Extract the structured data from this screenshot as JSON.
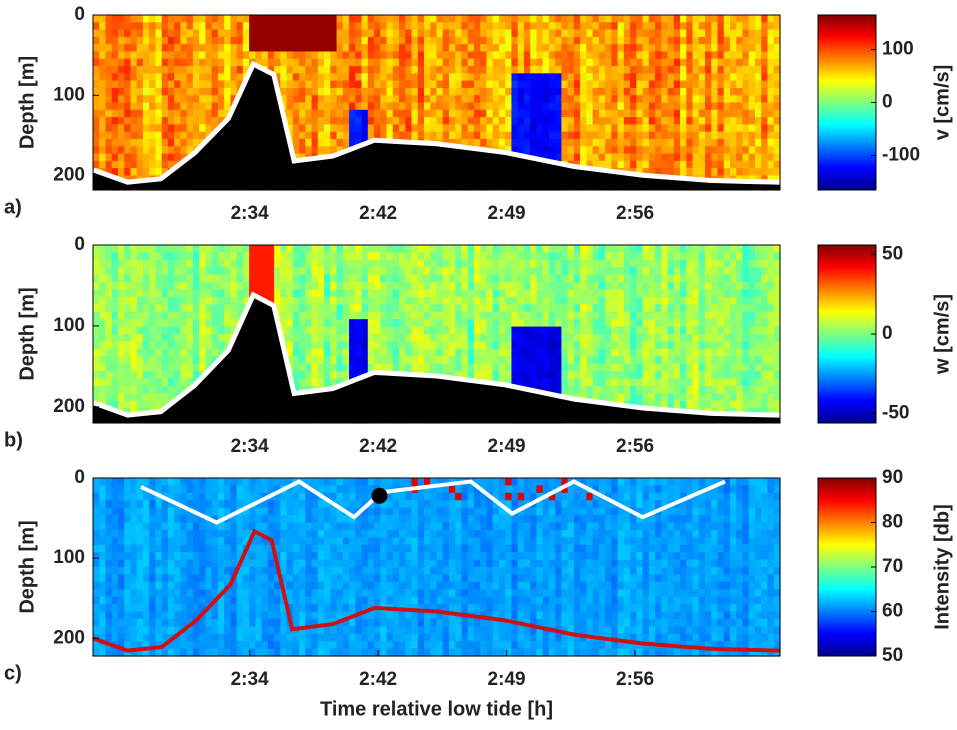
{
  "chart_data": [
    {
      "type": "heatmap",
      "panel_label": "a)",
      "ylabel": "Depth [m]",
      "ylim": [
        0,
        218
      ],
      "yticks": [
        0,
        100,
        200
      ],
      "xticks": [
        "2:34",
        "2:42",
        "2:49",
        "2:56"
      ],
      "colorbar": {
        "label": "v [cm/s]",
        "lim": [
          -165,
          165
        ],
        "ticks": [
          100,
          0,
          -100
        ]
      }
    },
    {
      "type": "heatmap",
      "panel_label": "b)",
      "ylabel": "Depth [m]",
      "ylim": [
        0,
        220
      ],
      "yticks": [
        0,
        100,
        200
      ],
      "xticks": [
        "2:34",
        "2:42",
        "2:49",
        "2:56"
      ],
      "colorbar": {
        "label": "w [cm/s]",
        "lim": [
          -56,
          56
        ],
        "ticks": [
          50,
          0,
          -50
        ]
      }
    },
    {
      "type": "heatmap",
      "panel_label": "c)",
      "ylabel": "Depth [m]",
      "ylim": [
        0,
        222
      ],
      "yticks": [
        0,
        100,
        200
      ],
      "xticks": [
        "2:34",
        "2:42",
        "2:49",
        "2:56"
      ],
      "xlabel": "Time relative low tide [h]",
      "colorbar": {
        "label": "Intensity [db]",
        "lim": [
          50,
          90
        ],
        "ticks": [
          90,
          80,
          70,
          60,
          50
        ]
      }
    }
  ]
}
